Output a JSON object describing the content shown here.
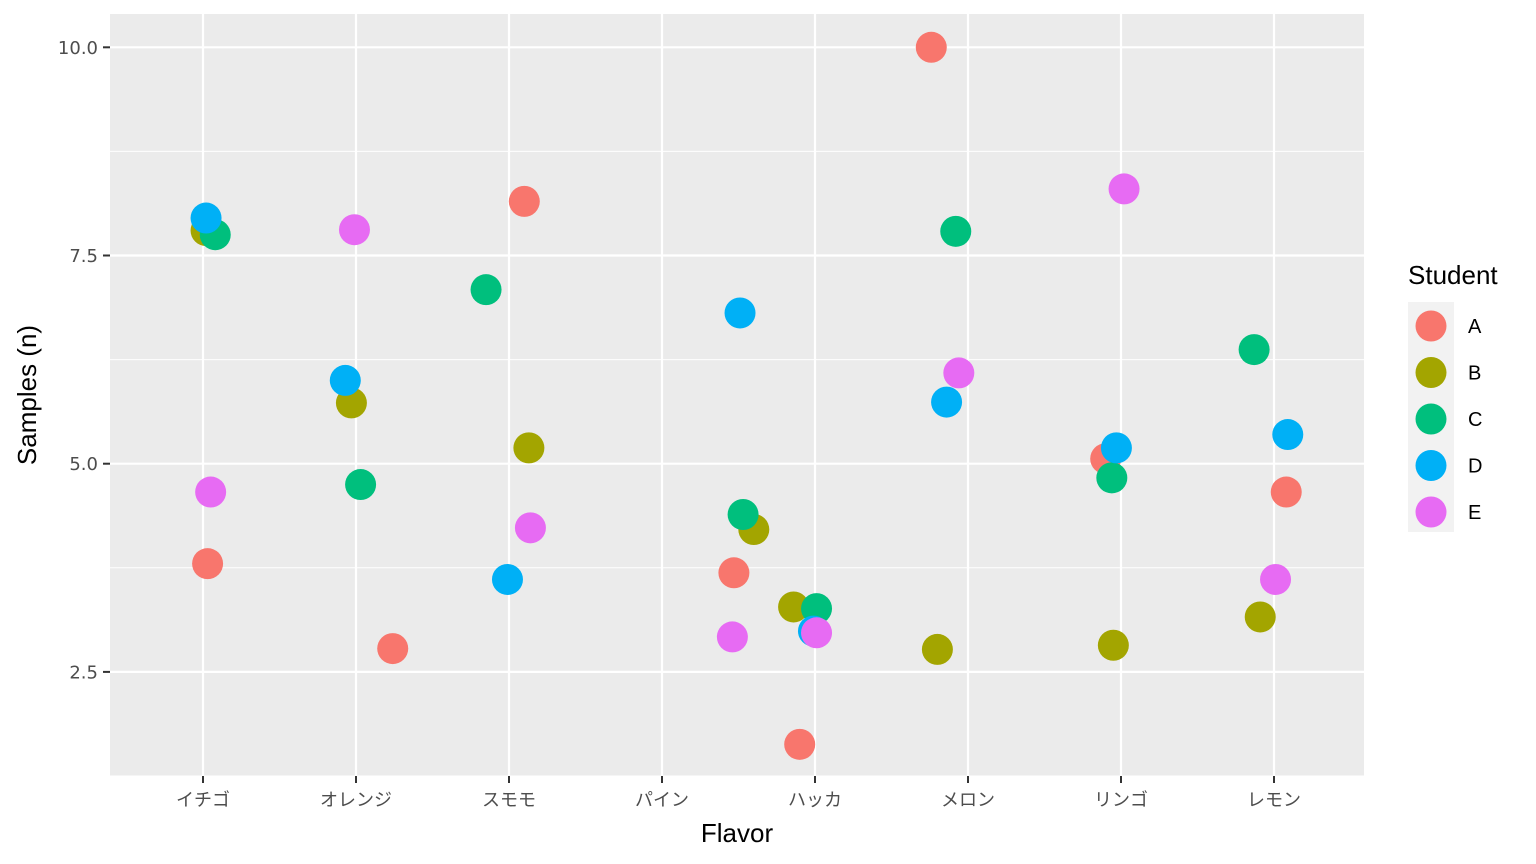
{
  "chart_data": {
    "type": "scatter",
    "title": "",
    "xlabel": "Flavor",
    "ylabel": "Samples (n)",
    "categories": [
      "イチゴ",
      "オレンジ",
      "スモモ",
      "パイン",
      "ハッカ",
      "メロン",
      "リンゴ",
      "レモン"
    ],
    "y_ticks": [
      2.5,
      5.0,
      7.5,
      10.0
    ],
    "y_tick_labels": [
      "2.5",
      "5.0",
      "7.5",
      "10.0"
    ],
    "ylim": [
      1.25,
      10.4
    ],
    "grid": true,
    "legend": {
      "title": "Student",
      "placement": "right"
    },
    "series": [
      {
        "name": "A",
        "color": "#F8766D",
        "points": [
          {
            "cat": 0,
            "jitter": 0.03,
            "y": 3.8
          },
          {
            "cat": 1,
            "jitter": 0.24,
            "y": 2.78
          },
          {
            "cat": 2,
            "jitter": 0.1,
            "y": 8.15
          },
          {
            "cat": 3,
            "jitter": 0.47,
            "y": 3.69
          },
          {
            "cat": 4,
            "jitter": -0.1,
            "y": 1.63
          },
          {
            "cat": 5,
            "jitter": -0.24,
            "y": 10.0
          },
          {
            "cat": 6,
            "jitter": -0.1,
            "y": 5.06
          },
          {
            "cat": 7,
            "jitter": 0.08,
            "y": 4.66
          }
        ]
      },
      {
        "name": "B",
        "color": "#A3A500",
        "points": [
          {
            "cat": 0,
            "jitter": 0.02,
            "y": 7.8
          },
          {
            "cat": 1,
            "jitter": -0.03,
            "y": 5.73
          },
          {
            "cat": 2,
            "jitter": 0.13,
            "y": 5.19
          },
          {
            "cat": 3,
            "jitter": 0.6,
            "y": 4.21
          },
          {
            "cat": 4,
            "jitter": -0.14,
            "y": 3.28
          },
          {
            "cat": 5,
            "jitter": -0.2,
            "y": 2.77
          },
          {
            "cat": 6,
            "jitter": -0.05,
            "y": 2.82
          },
          {
            "cat": 7,
            "jitter": -0.09,
            "y": 3.16
          }
        ]
      },
      {
        "name": "C",
        "color": "#00BF7D",
        "points": [
          {
            "cat": 0,
            "jitter": 0.08,
            "y": 7.75
          },
          {
            "cat": 1,
            "jitter": 0.03,
            "y": 4.75
          },
          {
            "cat": 2,
            "jitter": -0.15,
            "y": 7.09
          },
          {
            "cat": 3,
            "jitter": 0.53,
            "y": 4.39
          },
          {
            "cat": 4,
            "jitter": 0.01,
            "y": 3.26
          },
          {
            "cat": 5,
            "jitter": -0.08,
            "y": 7.79
          },
          {
            "cat": 6,
            "jitter": -0.06,
            "y": 4.83
          },
          {
            "cat": 7,
            "jitter": -0.13,
            "y": 6.37
          }
        ]
      },
      {
        "name": "D",
        "color": "#00B0F6",
        "points": [
          {
            "cat": 0,
            "jitter": 0.02,
            "y": 7.95
          },
          {
            "cat": 1,
            "jitter": -0.07,
            "y": 6.0
          },
          {
            "cat": 2,
            "jitter": -0.01,
            "y": 3.61
          },
          {
            "cat": 3,
            "jitter": 0.51,
            "y": 6.81
          },
          {
            "cat": 4,
            "jitter": -0.01,
            "y": 2.99
          },
          {
            "cat": 5,
            "jitter": -0.14,
            "y": 5.74
          },
          {
            "cat": 6,
            "jitter": -0.03,
            "y": 5.19
          },
          {
            "cat": 7,
            "jitter": 0.09,
            "y": 5.35
          }
        ]
      },
      {
        "name": "E",
        "color": "#E76BF3",
        "points": [
          {
            "cat": 0,
            "jitter": 0.05,
            "y": 4.66
          },
          {
            "cat": 1,
            "jitter": -0.01,
            "y": 7.81
          },
          {
            "cat": 2,
            "jitter": 0.14,
            "y": 4.23
          },
          {
            "cat": 3,
            "jitter": 0.46,
            "y": 2.92
          },
          {
            "cat": 4,
            "jitter": 0.01,
            "y": 2.97
          },
          {
            "cat": 5,
            "jitter": -0.06,
            "y": 6.09
          },
          {
            "cat": 6,
            "jitter": 0.02,
            "y": 8.3
          },
          {
            "cat": 7,
            "jitter": 0.01,
            "y": 3.61
          }
        ]
      }
    ]
  }
}
